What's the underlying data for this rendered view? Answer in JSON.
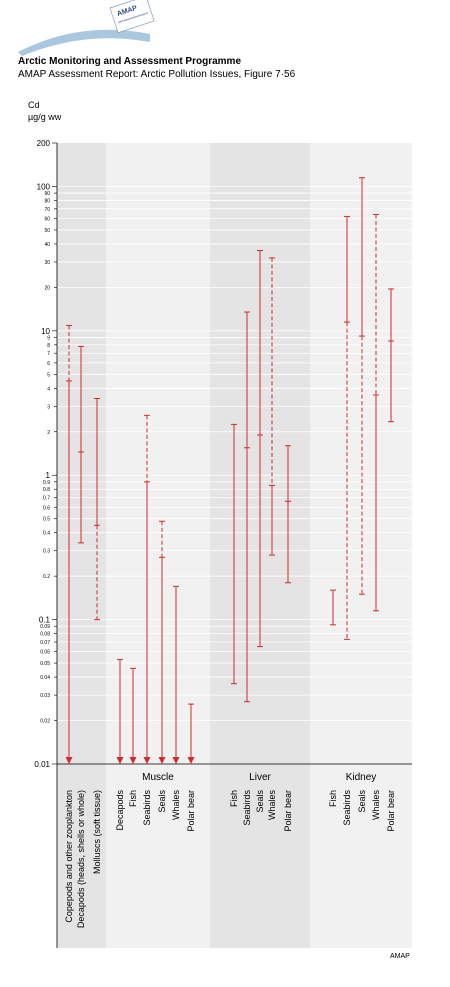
{
  "header": {
    "logo_text": "AMAP",
    "logo_subtext": "Arctic Monitoring and Assessment Programme",
    "title": "Arctic Monitoring and Assessment Programme",
    "subtitle": "AMAP Assessment Report: Arctic Pollution Issues, Figure 7·56"
  },
  "axis": {
    "label": "Cd",
    "unit": "µg/g ww",
    "major_ticks": [
      "0.01",
      "0.1",
      "1",
      "10",
      "100",
      "200"
    ],
    "minor_ticks": [
      "0.02",
      "0.03",
      "0.04",
      "0.05",
      "0.06",
      "0.07",
      "0.08",
      "0.09",
      "0.2",
      "0.3",
      "0.4",
      "0.5",
      "0.6",
      "0.7",
      "0.8",
      "0.9",
      "2",
      "3",
      "4",
      "5",
      "6",
      "7",
      "8",
      "9",
      "20",
      "30",
      "40",
      "50",
      "60",
      "70",
      "80",
      "90"
    ]
  },
  "credit": "AMAP",
  "colors": {
    "data": "#d42a2a",
    "panel_dark": "#e4e4e4",
    "panel_light": "#f1f1f1",
    "gridline": "#ffffff"
  },
  "chart_data": {
    "type": "range",
    "scale": "log",
    "ylim": [
      0.01,
      200
    ],
    "panels": [
      {
        "label": "",
        "groups": [
          {
            "name": "Copepods and other zooplankton",
            "lines": [
              "Copepods and other zooplankton"
            ],
            "top": 10.9,
            "mid": 4.5,
            "bottom": 0.01,
            "dashed_top": true,
            "dashed_bottom": false,
            "arrow": true
          },
          {
            "name": "Decapods (heads, shells or whole)",
            "lines": [
              "Decapods (heads, shells or whole)"
            ],
            "top": 7.8,
            "mid": 1.45,
            "bottom": 0.34,
            "dashed_top": false,
            "dashed_bottom": false,
            "arrow": false
          },
          {
            "name": "Mollusc (soft tissue)",
            "lines": [
              "Molluscs (soft tissue)"
            ],
            "top": 3.4,
            "mid": 0.45,
            "bottom": 0.1,
            "dashed_top": false,
            "dashed_bottom": true,
            "arrow": false
          }
        ]
      },
      {
        "label": "Muscle",
        "groups": [
          {
            "name": "Decapods",
            "lines": [
              "Decapods"
            ],
            "top": 0.053,
            "mid": null,
            "bottom": 0.01,
            "dashed_top": false,
            "dashed_bottom": false,
            "arrow": true
          },
          {
            "name": "Fish",
            "lines": [
              "Fish"
            ],
            "top": 0.046,
            "mid": null,
            "bottom": 0.01,
            "dashed_top": false,
            "dashed_bottom": false,
            "arrow": true
          },
          {
            "name": "Seabirds",
            "lines": [
              "Seabirds"
            ],
            "top": 2.6,
            "mid": 0.9,
            "bottom": 0.01,
            "dashed_top": true,
            "dashed_bottom": false,
            "arrow": true
          },
          {
            "name": "Seals",
            "lines": [
              "Seals"
            ],
            "top": 0.48,
            "mid": 0.27,
            "bottom": 0.01,
            "dashed_top": true,
            "dashed_bottom": false,
            "arrow": true
          },
          {
            "name": "Whales",
            "lines": [
              "Whales"
            ],
            "top": 0.17,
            "mid": null,
            "bottom": 0.01,
            "dashed_top": false,
            "dashed_bottom": false,
            "arrow": true
          },
          {
            "name": "Polar bear",
            "lines": [
              "Polar bear"
            ],
            "top": 0.026,
            "mid": null,
            "bottom": 0.01,
            "dashed_top": false,
            "dashed_bottom": false,
            "arrow": true
          }
        ]
      },
      {
        "label": "Liver",
        "groups": [
          {
            "name": "Fish",
            "lines": [
              "Fish"
            ],
            "top": 2.25,
            "mid": null,
            "bottom": 0.036,
            "dashed_top": false,
            "dashed_bottom": false,
            "arrow": false
          },
          {
            "name": "Seabirds",
            "lines": [
              "Seabirds"
            ],
            "top": 13.5,
            "mid": 1.55,
            "bottom": 0.027,
            "dashed_top": false,
            "dashed_bottom": false,
            "arrow": false
          },
          {
            "name": "Seals",
            "lines": [
              "Seals"
            ],
            "top": 36,
            "mid": 1.9,
            "bottom": 0.065,
            "dashed_top": false,
            "dashed_bottom": false,
            "arrow": false
          },
          {
            "name": "Whales",
            "lines": [
              "Whales"
            ],
            "top": 32,
            "mid": 0.85,
            "bottom": 0.28,
            "dashed_top": true,
            "dashed_bottom": false,
            "arrow": false
          },
          {
            "name": "Polar bear",
            "lines": [
              "Polar bear"
            ],
            "top": 1.6,
            "mid": 0.66,
            "bottom": 0.18,
            "dashed_top": false,
            "dashed_bottom": false,
            "arrow": false
          }
        ]
      },
      {
        "label": "Kidney",
        "groups": [
          {
            "name": "Fish",
            "lines": [
              "Fish"
            ],
            "top": 0.16,
            "mid": null,
            "bottom": 0.092,
            "dashed_top": false,
            "dashed_bottom": false,
            "arrow": false
          },
          {
            "name": "Seabirds",
            "lines": [
              "Seabirds"
            ],
            "top": 62,
            "mid": 11.5,
            "bottom": 0.073,
            "dashed_top": false,
            "dashed_bottom": true,
            "arrow": false
          },
          {
            "name": "Seals",
            "lines": [
              "Seals"
            ],
            "top": 115,
            "mid": 9.2,
            "bottom": 0.15,
            "dashed_top": false,
            "dashed_bottom": true,
            "arrow": false
          },
          {
            "name": "Whales",
            "lines": [
              "Whales"
            ],
            "top": 64,
            "mid": 3.6,
            "bottom": 0.115,
            "dashed_top": true,
            "dashed_bottom": false,
            "arrow": false
          },
          {
            "name": "Polar bear",
            "lines": [
              "Polar bear"
            ],
            "top": 19.5,
            "mid": 8.5,
            "bottom": 2.35,
            "dashed_top": false,
            "dashed_bottom": false,
            "arrow": false
          }
        ]
      }
    ]
  }
}
